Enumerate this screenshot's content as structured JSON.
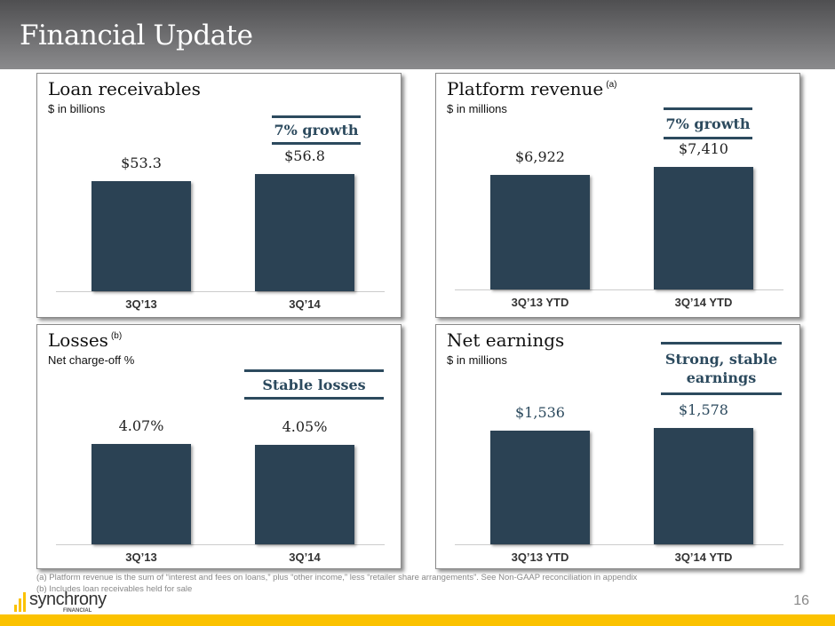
{
  "title": "Financial Update",
  "panels": [
    {
      "title": "Loan receivables",
      "sup": "",
      "subtitle": "$ in billions",
      "callout": "7% growth",
      "chart_data": {
        "type": "bar",
        "categories": [
          "3Q’13",
          "3Q’14"
        ],
        "values": [
          53.3,
          56.8
        ],
        "labels": [
          "$53.3",
          "$56.8"
        ]
      }
    },
    {
      "title": "Platform revenue",
      "sup": "(a)",
      "subtitle": "$ in millions",
      "callout": "7% growth",
      "chart_data": {
        "type": "bar",
        "categories": [
          "3Q’13 YTD",
          "3Q’14 YTD"
        ],
        "values": [
          6922,
          7410
        ],
        "labels": [
          "$6,922",
          "$7,410"
        ]
      }
    },
    {
      "title": "Losses",
      "sup": "(b)",
      "subtitle": "Net charge-off %",
      "callout": "Stable losses",
      "chart_data": {
        "type": "bar",
        "categories": [
          "3Q’13",
          "3Q’14"
        ],
        "values": [
          4.07,
          4.05
        ],
        "labels": [
          "4.07%",
          "4.05%"
        ]
      }
    },
    {
      "title": "Net earnings",
      "sup": "",
      "subtitle": "$ in millions",
      "callout": "Strong, stable earnings",
      "chart_data": {
        "type": "bar",
        "categories": [
          "3Q’13 YTD",
          "3Q’14 YTD"
        ],
        "values": [
          1536,
          1578
        ],
        "labels": [
          "$1,536",
          "$1,578"
        ],
        "label_color": "#2c4a5e"
      }
    }
  ],
  "footnotes": [
    "(a) Platform revenue is the sum of “interest and fees on loans,” plus “other income,” less “retailer share arrangements”.  See Non-GAAP reconciliation in appendix",
    "(b) Includes loan receivables held for sale"
  ],
  "logo": {
    "name": "synchrony",
    "sub": "FINANCIAL"
  },
  "page_number": "16",
  "colors": {
    "bar": "#2b4254",
    "accent": "#2c4a5e",
    "yellow": "#fbc200"
  }
}
